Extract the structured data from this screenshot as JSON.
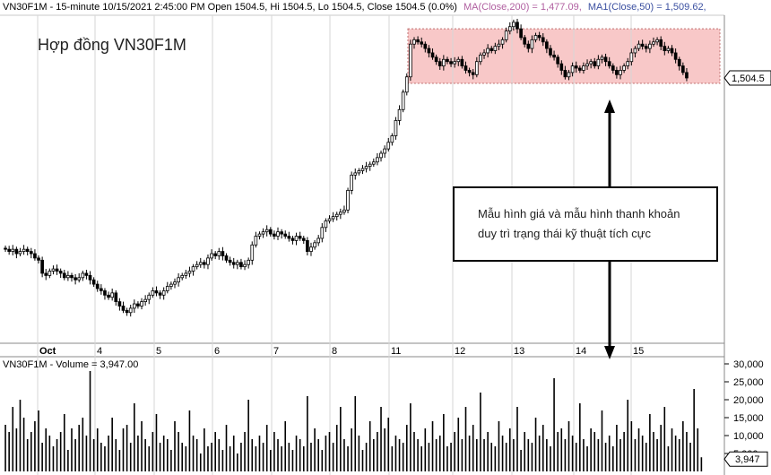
{
  "header": {
    "symbol_info": "VN30F1M - 15-minute 10/15/2021 2:45:00 PM Open 1504.5, Hi 1504.5, Lo 1504.5, Close 1504.5 (0.0%)",
    "ma200": "MA(Close,200) = 1,477.09,",
    "ma50": "MA1(Close,50) = 1,509.62,",
    "ma200_color": "#b05fa0",
    "ma50_color": "#3a4fa0"
  },
  "annotations": {
    "title": "Hợp đồng VN30F1M",
    "callout_line1": "Mẫu hình giá và mẫu hình thanh khoản",
    "callout_line2": "duy trì trạng thái kỹ thuật tích cực",
    "zone_color": "#f8c8c8"
  },
  "price_label": "1,504.5",
  "volume_label": "3,947",
  "volume_header": "VN30F1M - Volume = 3,947.00",
  "chart_data": [
    {
      "type": "candlestick",
      "x_tick_labels": [
        "Oct",
        "4",
        "5",
        "6",
        "7",
        "8",
        "11",
        "12",
        "13",
        "14",
        "15"
      ],
      "y_range": [
        1385,
        1532
      ],
      "last_value": 1504.5,
      "consolidation_zone": [
        1502,
        1527
      ],
      "closes": [
        1426,
        1425,
        1426,
        1424,
        1425,
        1426,
        1425,
        1424,
        1422,
        1421,
        1415,
        1414,
        1416,
        1417,
        1416,
        1415,
        1413,
        1414,
        1413,
        1412,
        1413,
        1415,
        1414,
        1412,
        1410,
        1408,
        1407,
        1405,
        1404,
        1406,
        1402,
        1400,
        1398,
        1397,
        1399,
        1401,
        1400,
        1402,
        1403,
        1405,
        1407,
        1406,
        1405,
        1407,
        1409,
        1410,
        1411,
        1413,
        1414,
        1415,
        1416,
        1418,
        1419,
        1420,
        1419,
        1422,
        1424,
        1423,
        1425,
        1423,
        1421,
        1420,
        1419,
        1420,
        1418,
        1419,
        1421,
        1428,
        1432,
        1433,
        1434,
        1435,
        1433,
        1432,
        1434,
        1433,
        1432,
        1431,
        1430,
        1432,
        1431,
        1430,
        1425,
        1427,
        1429,
        1431,
        1436,
        1439,
        1440,
        1441,
        1442,
        1443,
        1444,
        1453,
        1460,
        1461,
        1462,
        1463,
        1464,
        1465,
        1466,
        1468,
        1470,
        1472,
        1475,
        1478,
        1485,
        1490,
        1498,
        1505,
        1520,
        1522,
        1521,
        1520,
        1518,
        1516,
        1514,
        1512,
        1510,
        1513,
        1512,
        1511,
        1512,
        1513,
        1510,
        1508,
        1507,
        1506,
        1512,
        1515,
        1516,
        1518,
        1517,
        1519,
        1520,
        1522,
        1526,
        1528,
        1530,
        1527,
        1523,
        1520,
        1518,
        1522,
        1524,
        1523,
        1521,
        1518,
        1515,
        1514,
        1511,
        1508,
        1505,
        1507,
        1510,
        1509,
        1508,
        1510,
        1511,
        1512,
        1510,
        1513,
        1514,
        1512,
        1510,
        1508,
        1506,
        1508,
        1510,
        1512,
        1516,
        1518,
        1520,
        1519,
        1518,
        1520,
        1521,
        1522,
        1519,
        1517,
        1518,
        1516,
        1513,
        1510,
        1507,
        1504.5
      ],
      "volume_axis_labels": [
        "30,000",
        "25,000",
        "20,000",
        "15,000",
        "10,000",
        "5,000"
      ],
      "volume_range": [
        0,
        31000
      ],
      "volumes": [
        13000,
        11000,
        18000,
        12000,
        20000,
        15000,
        9000,
        11000,
        14000,
        17000,
        8000,
        12000,
        10000,
        7000,
        9000,
        11000,
        16000,
        6000,
        12000,
        9000,
        13000,
        15000,
        10000,
        28000,
        9000,
        12000,
        8000,
        7000,
        10000,
        15000,
        9000,
        6000,
        12000,
        13000,
        8000,
        19000,
        10000,
        14000,
        9000,
        7000,
        11000,
        16000,
        8000,
        10000,
        9000,
        6000,
        14000,
        11000,
        8000,
        7000,
        17000,
        10000,
        9000,
        5000,
        12000,
        7000,
        8000,
        11000,
        9000,
        6000,
        13000,
        7000,
        10000,
        5000,
        8000,
        11000,
        20000,
        9000,
        7000,
        10000,
        8000,
        13000,
        6000,
        11000,
        9000,
        7000,
        14000,
        8000,
        6000,
        10000,
        9000,
        7000,
        21000,
        8000,
        12000,
        9000,
        6000,
        10000,
        11000,
        8000,
        13000,
        18000,
        9000,
        7000,
        12000,
        21000,
        10000,
        6000,
        8000,
        14000,
        9000,
        11000,
        18000,
        12000,
        15000,
        7000,
        10000,
        9000,
        8000,
        13000,
        19000,
        11000,
        9000,
        7000,
        12000,
        8000,
        14000,
        9000,
        10000,
        16000,
        7000,
        8000,
        11000,
        15000,
        9000,
        18000,
        10000,
        13000,
        9000,
        22000,
        9000,
        11000,
        8000,
        7000,
        14000,
        10000,
        8000,
        12000,
        9000,
        18000,
        6000,
        11000,
        9000,
        8000,
        15000,
        10000,
        13000,
        9000,
        7000,
        26000,
        11000,
        12000,
        9000,
        14000,
        10000,
        8000,
        19000,
        9000,
        7000,
        12000,
        11000,
        9000,
        17000,
        8000,
        10000,
        7000,
        13000,
        9000,
        11000,
        20000,
        14000,
        9000,
        12000,
        10000,
        8000,
        16000,
        11000,
        9000,
        13000,
        18000,
        7000,
        12000,
        10000,
        9000,
        14000,
        11000,
        8000,
        23000,
        12000,
        3947
      ]
    }
  ]
}
